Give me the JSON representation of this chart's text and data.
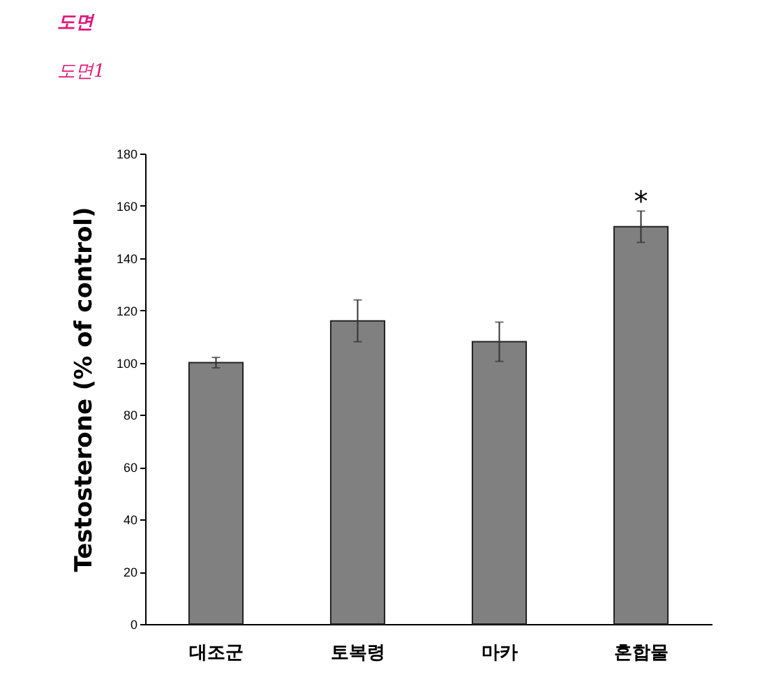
{
  "chart_data": {
    "type": "bar",
    "title": "도면",
    "subtitle": "도면1",
    "ylabel": "Testosterone (% of control)",
    "categories": [
      "대조군",
      "토복령",
      "마카",
      "혼합물"
    ],
    "values": [
      100,
      116,
      108,
      152
    ],
    "errors": [
      2,
      8,
      7.5,
      6
    ],
    "color": "#808080",
    "ylim": [
      0,
      180
    ],
    "yticks": [
      0,
      20,
      40,
      60,
      80,
      100,
      120,
      140,
      160,
      180
    ],
    "grid": false,
    "annotations": [
      "*"
    ]
  }
}
